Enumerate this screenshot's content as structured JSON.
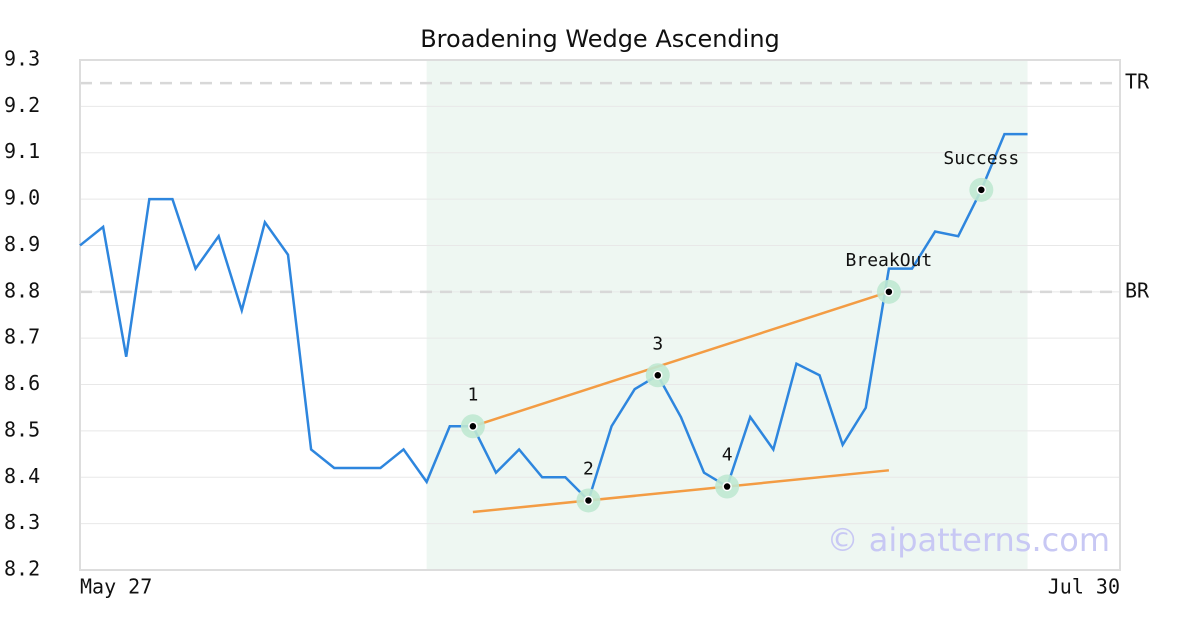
{
  "chart_data": {
    "type": "line",
    "title": "Broadening Wedge Ascending",
    "x": [
      0,
      1,
      2,
      3,
      4,
      5,
      6,
      7,
      8,
      9,
      10,
      11,
      12,
      13,
      14,
      15,
      16,
      17,
      18,
      19,
      20,
      21,
      22,
      23,
      24,
      25,
      26,
      27,
      28,
      29,
      30,
      31,
      32,
      33,
      34,
      35,
      36,
      37,
      38,
      39,
      40,
      41
    ],
    "values": [
      8.9,
      8.94,
      8.66,
      9.0,
      9.0,
      8.85,
      8.92,
      8.76,
      8.95,
      8.88,
      8.46,
      8.42,
      8.42,
      8.42,
      8.46,
      8.39,
      8.51,
      8.51,
      8.41,
      8.46,
      8.4,
      8.4,
      8.35,
      8.51,
      8.59,
      8.62,
      8.53,
      8.41,
      8.38,
      8.53,
      8.46,
      8.645,
      8.62,
      8.47,
      8.55,
      8.85,
      8.85,
      8.93,
      8.92,
      9.02,
      9.14,
      9.14
    ],
    "color": "#2e86de",
    "xlim": [
      0,
      45
    ],
    "xticks": [
      {
        "value": 0,
        "label": "May 27"
      },
      {
        "value": 45,
        "label": "Jul 30"
      }
    ],
    "ylim": [
      8.2,
      9.3
    ],
    "yticks": [
      8.2,
      8.3,
      8.4,
      8.5,
      8.6,
      8.7,
      8.8,
      8.9,
      {
        "value": 9,
        "label": "9.0"
      },
      9.1,
      9.2,
      9.3
    ],
    "grid": true,
    "highlight": [
      15,
      41
    ],
    "levels": [
      {
        "label": "TR",
        "value": 9.25
      },
      {
        "label": "BR",
        "value": 8.8
      }
    ],
    "trendlines": [
      {
        "x": [
          17,
          35
        ],
        "values": [
          8.51,
          8.8
        ],
        "color": "#f39c44"
      },
      {
        "x": [
          17,
          35
        ],
        "values": [
          8.325,
          8.415
        ],
        "color": "#f39c44"
      }
    ],
    "points": [
      {
        "label": "1",
        "x": 17,
        "value": 8.51
      },
      {
        "label": "2",
        "x": 22,
        "value": 8.35
      },
      {
        "label": "3",
        "x": 25,
        "value": 8.62
      },
      {
        "label": "4",
        "x": 28,
        "value": 8.38
      },
      {
        "label": "BreakOut",
        "x": 35,
        "value": 8.8
      },
      {
        "label": "Success",
        "x": 39,
        "value": 9.02
      }
    ],
    "watermark": "© aipatterns.com"
  }
}
